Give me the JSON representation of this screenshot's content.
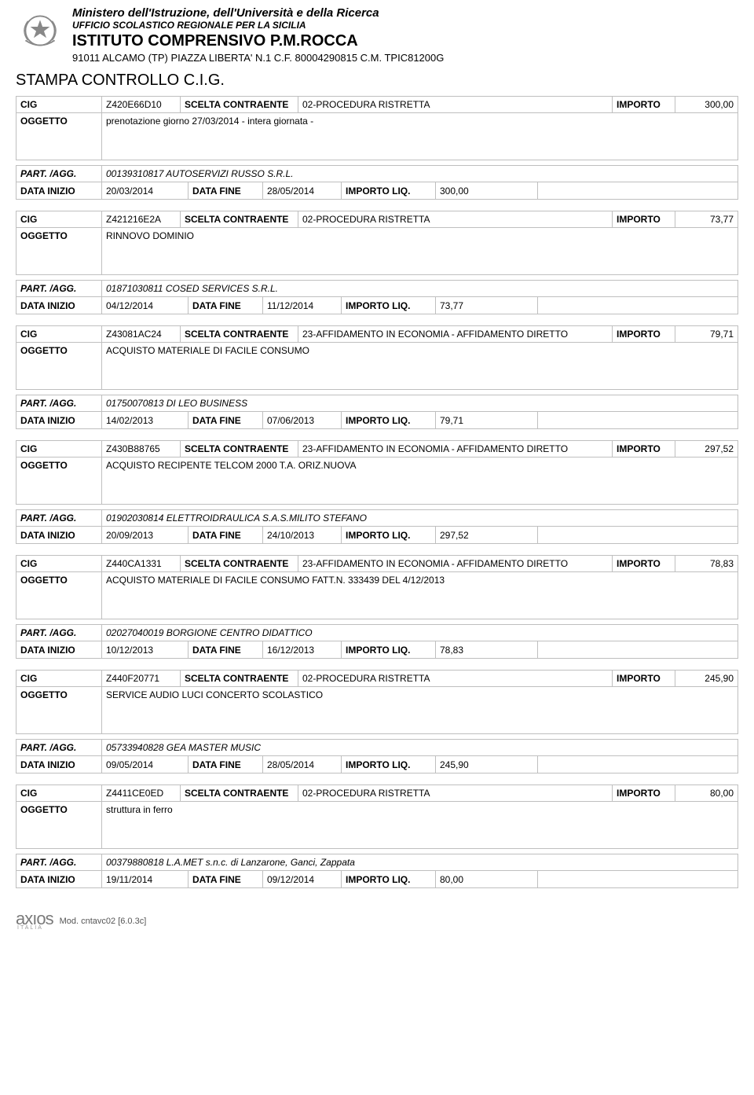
{
  "header": {
    "ministero": "Ministero dell'Istruzione, dell'Università e della Ricerca",
    "ufficio": "UFFICIO SCOLASTICO REGIONALE PER LA SICILIA",
    "istituto": "ISTITUTO COMPRENSIVO P.M.ROCCA",
    "indirizzo": "91011 ALCAMO (TP) PIAZZA LIBERTA' N.1 C.F. 80004290815 C.M. TPIC81200G"
  },
  "stampa": "STAMPA CONTROLLO C.I.G.",
  "labels": {
    "cig": "CIG",
    "scelta": "SCELTA CONTRAENTE",
    "importo": "IMPORTO",
    "oggetto": "OGGETTO",
    "part": "PART. /AGG.",
    "data_inizio": "DATA INIZIO",
    "data_fine": "DATA FINE",
    "importo_liq": "IMPORTO LIQ."
  },
  "records": [
    {
      "cig": "Z420E66D10",
      "scelta": "02-PROCEDURA RISTRETTA",
      "importo": "300,00",
      "oggetto": "prenotazione giorno 27/03/2014 - intera giornata -",
      "part": "00139310817  AUTOSERVIZI RUSSO S.R.L.",
      "data_inizio": "20/03/2014",
      "data_fine": "28/05/2014",
      "importo_liq": "300,00"
    },
    {
      "cig": "Z421216E2A",
      "scelta": "02-PROCEDURA RISTRETTA",
      "importo": "73,77",
      "oggetto": "RINNOVO DOMINIO",
      "part": "01871030811  COSED SERVICES S.R.L.",
      "data_inizio": "04/12/2014",
      "data_fine": "11/12/2014",
      "importo_liq": "73,77"
    },
    {
      "cig": "Z43081AC24",
      "scelta": "23-AFFIDAMENTO IN ECONOMIA - AFFIDAMENTO DIRETTO",
      "importo": "79,71",
      "oggetto": "ACQUISTO MATERIALE DI FACILE CONSUMO",
      "part": "01750070813  DI LEO BUSINESS",
      "data_inizio": "14/02/2013",
      "data_fine": "07/06/2013",
      "importo_liq": "79,71"
    },
    {
      "cig": "Z430B88765",
      "scelta": "23-AFFIDAMENTO IN ECONOMIA - AFFIDAMENTO DIRETTO",
      "importo": "297,52",
      "oggetto": "ACQUISTO RECIPENTE TELCOM 2000 T.A. ORIZ.NUOVA",
      "part": "01902030814  ELETTROIDRAULICA S.A.S.MILITO STEFANO",
      "data_inizio": "20/09/2013",
      "data_fine": "24/10/2013",
      "importo_liq": "297,52"
    },
    {
      "cig": "Z440CA1331",
      "scelta": "23-AFFIDAMENTO IN ECONOMIA - AFFIDAMENTO DIRETTO",
      "importo": "78,83",
      "oggetto": "ACQUISTO MATERIALE DI FACILE CONSUMO FATT.N. 333439 DEL 4/12/2013",
      "part": "02027040019  BORGIONE CENTRO DIDATTICO",
      "data_inizio": "10/12/2013",
      "data_fine": "16/12/2013",
      "importo_liq": "78,83"
    },
    {
      "cig": "Z440F20771",
      "scelta": "02-PROCEDURA RISTRETTA",
      "importo": "245,90",
      "oggetto": "SERVICE AUDIO LUCI CONCERTO SCOLASTICO",
      "part": "05733940828  GEA MASTER MUSIC",
      "data_inizio": "09/05/2014",
      "data_fine": "28/05/2014",
      "importo_liq": "245,90"
    },
    {
      "cig": "Z4411CE0ED",
      "scelta": "02-PROCEDURA RISTRETTA",
      "importo": "80,00",
      "oggetto": "struttura in ferro",
      "part": "00379880818  L.A.MET s.n.c. di Lanzarone, Ganci, Zappata",
      "data_inizio": "19/11/2014",
      "data_fine": "09/12/2014",
      "importo_liq": "80,00"
    }
  ],
  "footer": {
    "mod": "Mod. cntavc02 [6.0.3c]"
  }
}
